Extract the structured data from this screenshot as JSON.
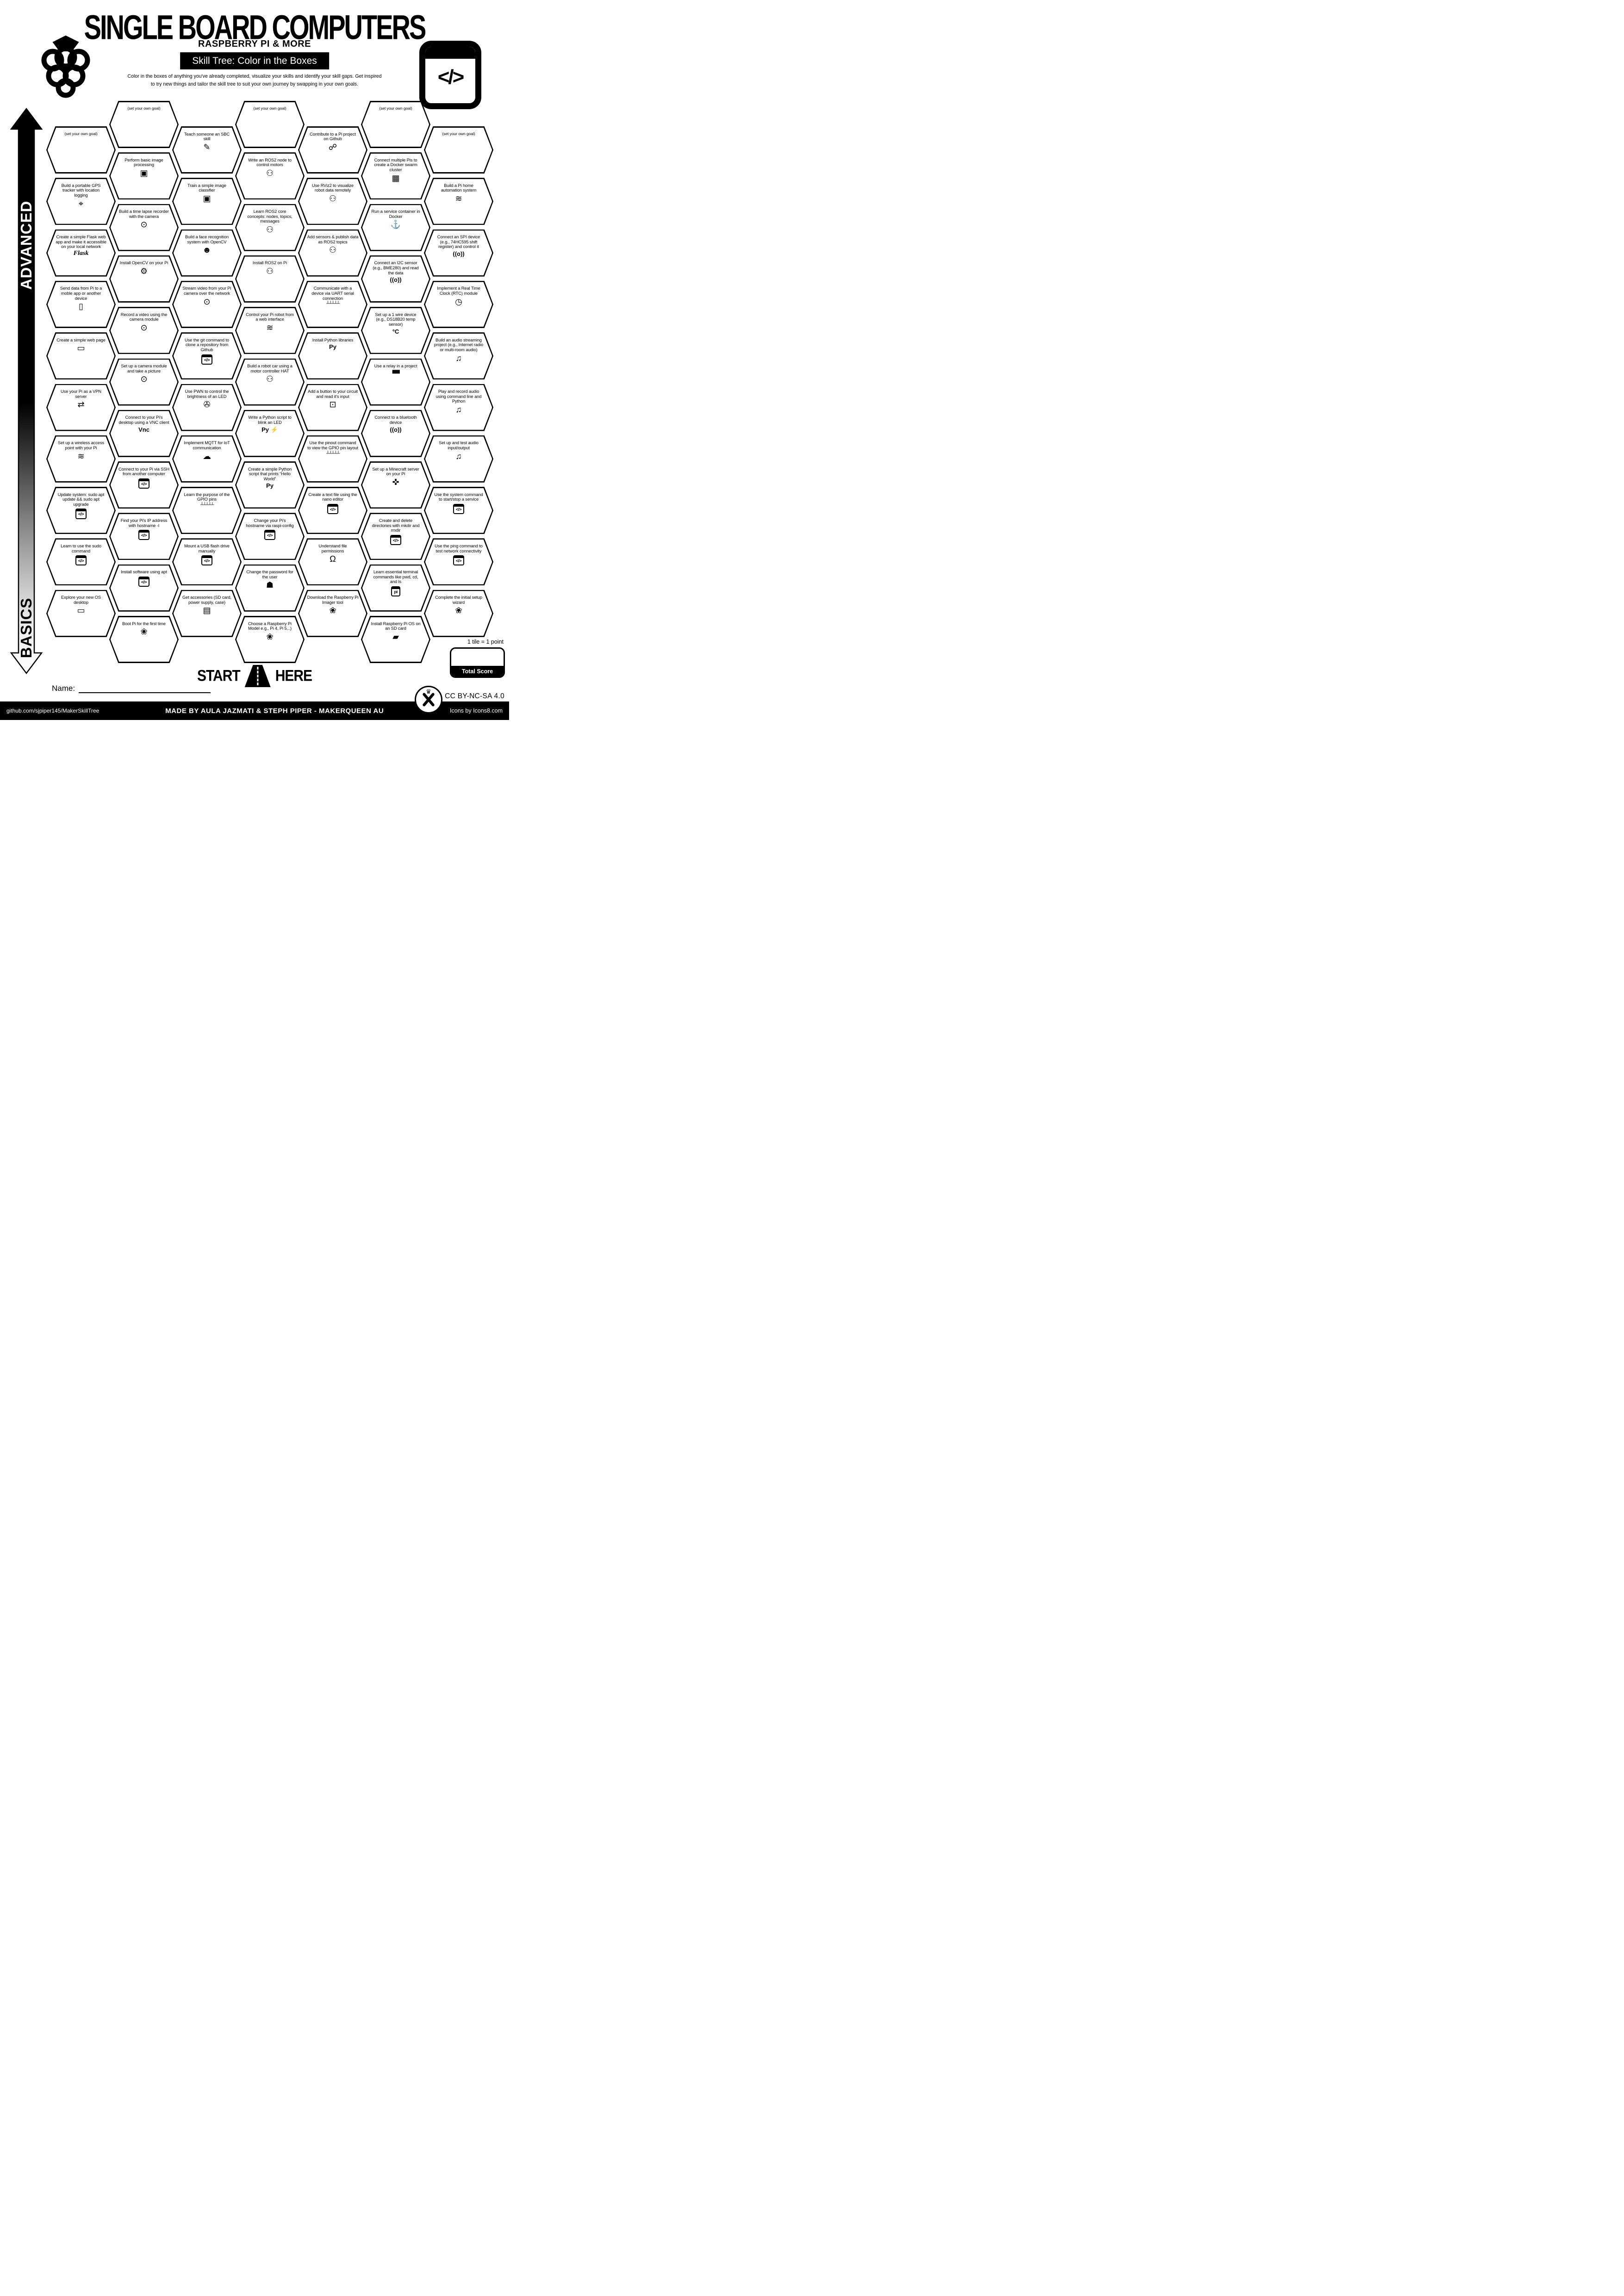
{
  "colors": {
    "ink": "#000000",
    "paper": "#ffffff"
  },
  "header": {
    "title": "SINGLE BOARD COMPUTERS",
    "subtitle": "RASPBERRY PI & MORE",
    "banner": "Skill Tree: Color in the Boxes",
    "description_line1": "Color in the boxes of anything you've already completed, visualize your skills and identify your skill gaps.  Get inspired",
    "description_line2": "to try new things and tailor the skill tree to suit your own journey by swapping in your own goals.",
    "logo_left": "raspberry-logo",
    "logo_right": "code-window-logo"
  },
  "axis": {
    "top_label": "ADVANCED",
    "bottom_label": "BASICS"
  },
  "columns": [
    {
      "tiles": [
        {
          "label": "(set your own goal)",
          "goal": true
        },
        {
          "label": "Build a portable GPS tracker with location logging",
          "icon": "location-pin-icon",
          "glyph": "⌖"
        },
        {
          "label": "Create a simple Flask web app and make it accessible on your local network",
          "icon": "flask-logo",
          "glyph": "Flask",
          "style": "flask"
        },
        {
          "label": "Send data from Pi to a moble app or another device",
          "icon": "smartphone-icon",
          "glyph": "▯"
        },
        {
          "label": "Create a simple web page",
          "icon": "monitor-icon",
          "glyph": "▭"
        },
        {
          "label": "Use your Pi as a VPN server",
          "icon": "vpn-monitor-icon",
          "glyph": "⇄"
        },
        {
          "label": "Set up a wireless access point with your Pi",
          "icon": "wifi-icon",
          "glyph": "≋"
        },
        {
          "label": "Update system: sudo apt update && sudo apt upgrade",
          "icon": "code-window-icon",
          "glyph": "</>",
          "style": "boxed"
        },
        {
          "label": "Learn to use the sudo command",
          "icon": "code-window-icon",
          "glyph": "</>",
          "style": "boxed"
        },
        {
          "label": "Explore your new OS desktop",
          "icon": "monitor-icon",
          "glyph": "▭"
        }
      ]
    },
    {
      "tiles": [
        {
          "label": "(set your own goal)",
          "goal": true
        },
        {
          "label": "Perform basic image processing",
          "icon": "image-icon",
          "glyph": "▣"
        },
        {
          "label": "Build a time lapse recorder with the camera",
          "icon": "camera-icon",
          "glyph": "⊙"
        },
        {
          "label": "Install OpenCV on your Pi",
          "icon": "opencv-logo",
          "glyph": "⚙"
        },
        {
          "label": "Record a video using the camera module",
          "icon": "camera-icon",
          "glyph": "⊙"
        },
        {
          "label": "Set up a camera module and take a picture",
          "icon": "camera-icon",
          "glyph": "⊙"
        },
        {
          "label": "Connect to your Pi's desktop using a VNC client",
          "icon": "vnc-logo",
          "glyph": "Vnc",
          "style": "text"
        },
        {
          "label": "Connect to your Pi via SSH from another computer",
          "icon": "code-window-icon",
          "glyph": "</>",
          "style": "boxed"
        },
        {
          "label": "Find your Pi's IP address with hostname -I",
          "icon": "code-window-icon",
          "glyph": "</>",
          "style": "boxed"
        },
        {
          "label": "Install software using apt",
          "icon": "code-window-icon",
          "glyph": "</>",
          "style": "boxed"
        },
        {
          "label": "Boot Pi for the first time",
          "icon": "raspberry-icon",
          "glyph": "❀"
        }
      ]
    },
    {
      "tiles": [
        {
          "label": "Teach someone an SBC skill",
          "icon": "teacher-icon",
          "glyph": "✎"
        },
        {
          "label": "Train a simple image classifier",
          "icon": "image-icon",
          "glyph": "▣"
        },
        {
          "label": "Build a face recognition system with OpenCV",
          "icon": "face-scan-icon",
          "glyph": "☻"
        },
        {
          "label": "Stream video from your Pi camera over the network",
          "icon": "camera-icon",
          "glyph": "⊙"
        },
        {
          "label": "Use the git command to clone a repository from Github",
          "icon": "code-window-icon",
          "glyph": "</>",
          "style": "boxed"
        },
        {
          "label": "Use PWN to control the brightness of an LED",
          "icon": "film-reel-icon",
          "glyph": "✇"
        },
        {
          "label": "Implement MQTT for IoT communication",
          "icon": "cloud-icon",
          "glyph": "☁"
        },
        {
          "label": "Learn the purpose of the GPIO pins",
          "icon": "gpio-pins-icon",
          "glyph": "┴┴┴┴┴",
          "style": "pins"
        },
        {
          "label": "Mount a USB flash drive manually",
          "icon": "code-window-icon",
          "glyph": "</>",
          "style": "boxed"
        },
        {
          "label": "Get accessories (SD card, power supply, case)",
          "icon": "accessories-box-icon",
          "glyph": "▤"
        }
      ]
    },
    {
      "tiles": [
        {
          "label": "(set your own goal)",
          "goal": true
        },
        {
          "label": "Write an ROS2 node to control motors",
          "icon": "robot-icon",
          "glyph": "⚇"
        },
        {
          "label": "Learn ROS2 core concepts: nodes, topics, messages",
          "icon": "robot-icon",
          "glyph": "⚇"
        },
        {
          "label": "Install ROS2 on Pi",
          "icon": "robot-icon",
          "glyph": "⚇"
        },
        {
          "label": "Control your Pi robot from a web interface",
          "icon": "wifi-icon",
          "glyph": "≋"
        },
        {
          "label": "Build a robot car using a motor controller HAT",
          "icon": "robot-icon",
          "glyph": "⚇"
        },
        {
          "label": "Write a Python script to blink an LED",
          "icon": "python-and-led-icon",
          "glyph": "Py ⚡",
          "style": "text"
        },
        {
          "label": "Create a simple Python script that prints “Hello World”",
          "icon": "python-logo",
          "glyph": "Py",
          "style": "text"
        },
        {
          "label": "Change your Pi's hostname via raspi-config",
          "icon": "code-window-icon",
          "glyph": "</>",
          "style": "boxed"
        },
        {
          "label": "Change the password for the user",
          "icon": "shield-icon",
          "glyph": "☗"
        },
        {
          "label": "Choose a Raspberry Pi Model e.g., Pi 4, Pi 5,..)",
          "icon": "raspberry-icon",
          "glyph": "❀"
        }
      ]
    },
    {
      "tiles": [
        {
          "label": "Contribute to a Pi project on Github",
          "icon": "circuit-icon",
          "glyph": "☍"
        },
        {
          "label": "Use RViz2 to visualize robot data remotely",
          "icon": "robot-icon",
          "glyph": "⚇"
        },
        {
          "label": "Add sensors & publish data as ROS2 topics",
          "icon": "robot-icon",
          "glyph": "⚇"
        },
        {
          "label": "Communicate with a device via UART serial connection",
          "icon": "gpio-pins-icon",
          "glyph": "┴┴┴┴┴",
          "style": "pins"
        },
        {
          "label": "Install Python libraries",
          "icon": "python-logo",
          "glyph": "Py",
          "style": "text"
        },
        {
          "label": "Add a button to your circuit and read it's input",
          "icon": "push-button-icon",
          "glyph": "⊡"
        },
        {
          "label": "Use the pinout command to view the GPIO pin layout",
          "icon": "gpio-pins-icon",
          "glyph": "┴┴┴┴┴",
          "style": "pins"
        },
        {
          "label": "Create a text file using the nano editor",
          "icon": "code-window-icon",
          "glyph": "</>",
          "style": "boxed"
        },
        {
          "label": "Understand file permissions",
          "icon": "padlock-icon",
          "glyph": "Ω"
        },
        {
          "label": "Download the Raspberry Pi Imager tool",
          "icon": "raspberry-icon",
          "glyph": "❀"
        }
      ]
    },
    {
      "tiles": [
        {
          "label": "(set your own goal)",
          "goal": true
        },
        {
          "label": "Connect multiple Pis to create a Docker swarm cluster",
          "icon": "chip-network-icon",
          "glyph": "▦"
        },
        {
          "label": "Run a service container in Docker",
          "icon": "docker-whale-icon",
          "glyph": "⚓"
        },
        {
          "label": "Connect an I2C sensor (e.g., BME280) and read the data",
          "icon": "radio-signal-icon",
          "glyph": "((o))",
          "style": "text"
        },
        {
          "label": "Set up a 1 wire device (e.g., DS18B20 temp sensor)",
          "icon": "thermometer-icon",
          "glyph": "°C",
          "style": "text"
        },
        {
          "label": "Use a relay in a project",
          "icon": "relay-icon",
          "glyph": "▮▮▮▮",
          "style": "pins"
        },
        {
          "label": "Connect to a bluetooth device",
          "icon": "radio-signal-icon",
          "glyph": "((o))",
          "style": "text"
        },
        {
          "label": "Set up a Minecraft server on your Pi",
          "icon": "joystick-icon",
          "glyph": "✜"
        },
        {
          "label": "Create and delete directories with mkdir and rmdir",
          "icon": "code-window-icon",
          "glyph": "</>",
          "style": "boxed"
        },
        {
          "label": "Learn essential terminal commands like pwd, cd, and ls",
          "icon": "pi-terminal-icon",
          "glyph": "pi",
          "style": "boxed"
        },
        {
          "label": "Install Raspberry Pi OS on an SD card",
          "icon": "sd-card-icon",
          "glyph": "▰"
        }
      ]
    },
    {
      "tiles": [
        {
          "label": "(set your own goal)",
          "goal": true
        },
        {
          "label": "Build a Pi home automation system",
          "icon": "wifi-icon",
          "glyph": "≋"
        },
        {
          "label": "Connect an SPI device (e.g., 74HC595 shift register) and control it",
          "icon": "radio-signal-icon",
          "glyph": "((o))",
          "style": "text"
        },
        {
          "label": "Implement a Real Time Clock (RTC) module",
          "icon": "clock-icon",
          "glyph": "◷"
        },
        {
          "label": "Build an audio streaming project (e.g., Internet radio or multi-room audio)",
          "icon": "music-note-icon",
          "glyph": "♫"
        },
        {
          "label": "Play and record audio using command line and Python",
          "icon": "music-note-icon",
          "glyph": "♫"
        },
        {
          "label": "Set up and test audio input/output",
          "icon": "music-note-icon",
          "glyph": "♫"
        },
        {
          "label": "Use the system command to start/stop a service",
          "icon": "code-window-icon",
          "glyph": "</>",
          "style": "boxed"
        },
        {
          "label": "Use the ping command to test network connectivity",
          "icon": "code-window-icon",
          "glyph": "</>",
          "style": "boxed"
        },
        {
          "label": "Complete the initial setup wizard",
          "icon": "raspberry-icon",
          "glyph": "❀"
        }
      ]
    }
  ],
  "start": {
    "label_left": "START",
    "label_right": "HERE"
  },
  "name_label": "Name:",
  "score": {
    "note": "1 tile = 1 point",
    "label": "Total Score"
  },
  "license": "CC BY-NC-SA 4.0",
  "footer": {
    "left": "github.com/sjpiper145/MakerSkillTree",
    "center": "MADE BY AULA JAZMATI & STEPH PIPER  -  MAKERQUEEN AU",
    "right": "Icons by Icons8.com"
  }
}
